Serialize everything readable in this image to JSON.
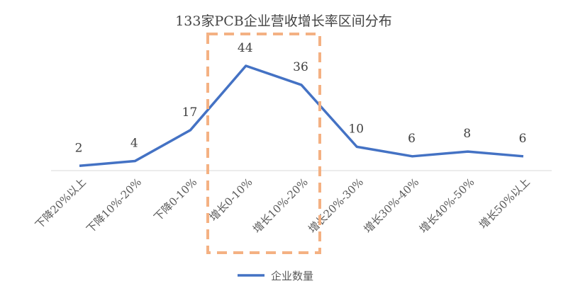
{
  "chart_data": {
    "type": "line",
    "title": "133家PCB企业营收增长率区间分布",
    "categories": [
      "下降20%以上",
      "下降10%-20%",
      "下降0-10%",
      "增长0-10%",
      "增长10%-20%",
      "增长20%-30%",
      "增长30%-40%",
      "增长40%-50%",
      "增长50%以上"
    ],
    "series": [
      {
        "name": "企业数量",
        "values": [
          2,
          4,
          17,
          44,
          36,
          10,
          6,
          8,
          6
        ],
        "color": "#4472C4"
      }
    ],
    "data_labels": true,
    "grid": false,
    "legend": "bottom",
    "highlight": {
      "categories": [
        "增长0-10%",
        "增长10%-20%"
      ],
      "style": "dashed-box",
      "color": "#F4B183"
    },
    "ylim": [
      0,
      48
    ]
  }
}
